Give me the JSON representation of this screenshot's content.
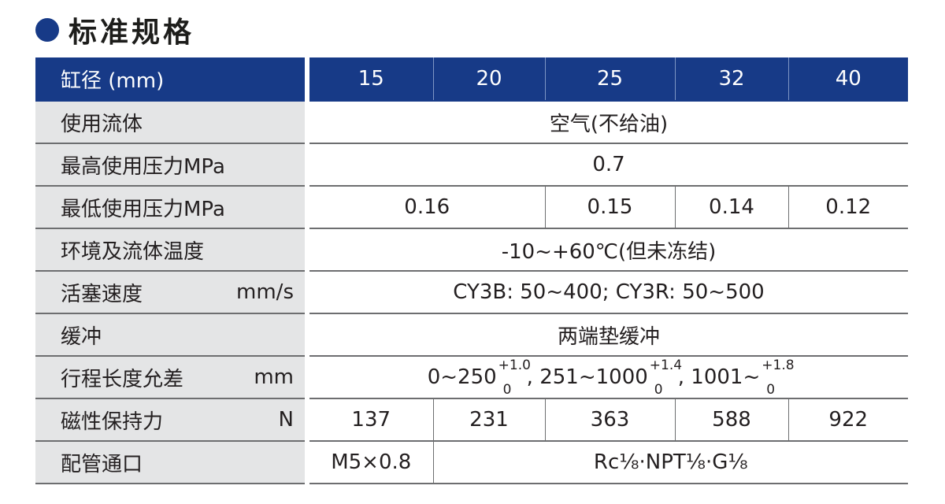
{
  "heading": {
    "title": "标准规格",
    "accent_color": "#173a87"
  },
  "table": {
    "header": {
      "label": "缸径 (mm)",
      "bores": [
        "15",
        "20",
        "25",
        "32",
        "40"
      ]
    },
    "rows": {
      "fluid": {
        "label": "使用流体",
        "value": "空气(不给油)"
      },
      "max_pressure": {
        "label": "最高使用压力MPa",
        "value": "0.7"
      },
      "min_pressure": {
        "label": "最低使用压力MPa",
        "values": [
          "0.16",
          "0.15",
          "0.14",
          "0.12"
        ]
      },
      "temperature": {
        "label": "环境及流体温度",
        "value": "-10~+60℃(但未冻结)"
      },
      "piston_speed": {
        "label": "活塞速度",
        "unit": "mm/s",
        "value": "CY3B: 50~400; CY3R: 50~500"
      },
      "cushion": {
        "label": "缓冲",
        "value": "两端垫缓冲"
      },
      "stroke_tolerance": {
        "label": "行程长度允差",
        "unit": "mm",
        "seg1": "0~250",
        "tol1_upper": "+1.0",
        "tol1_lower": "0",
        "seg2": ", 251~1000",
        "tol2_upper": "+1.4",
        "tol2_lower": "0",
        "seg3": ", 1001~",
        "tol3_upper": "+1.8",
        "tol3_lower": "0"
      },
      "holding_force": {
        "label": "磁性保持力",
        "unit": "N",
        "values": [
          "137",
          "231",
          "363",
          "588",
          "922"
        ]
      },
      "port": {
        "label": "配管通口",
        "value_small": "M5×0.8",
        "value_large": "Rc⅛·NPT⅛·G⅛"
      }
    }
  }
}
